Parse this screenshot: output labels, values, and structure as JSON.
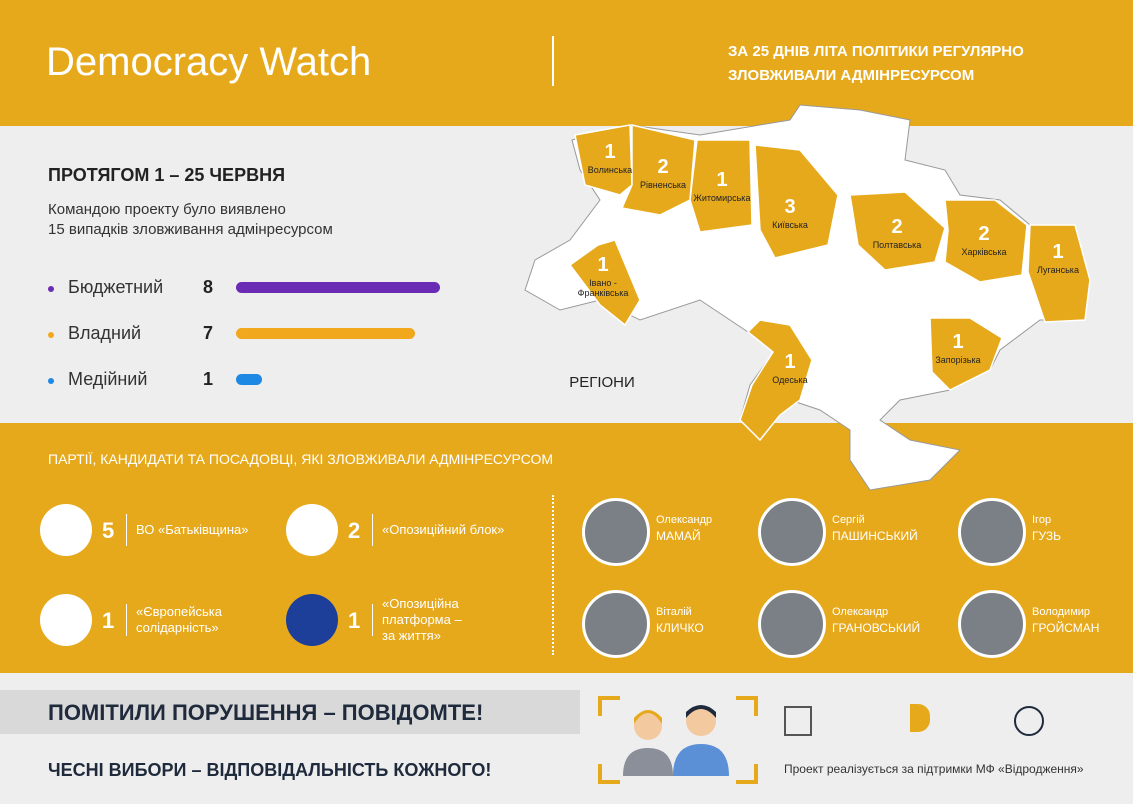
{
  "header": {
    "title": "Democracy Watch",
    "subtitle": [
      "ЗА 25 ДНІВ ЛІТА ПОЛІТИКИ РЕГУЛЯРНО",
      "ЗЛОВЖИВАЛИ АДМІНРЕСУРСОМ"
    ]
  },
  "summary": {
    "title": "ПРОТЯГОМ 1 – 25 ЧЕРВНЯ",
    "text": [
      "Командою проекту було виявлено",
      "15 випадків зловживання адмінресурсом"
    ],
    "types": [
      {
        "name": "Бюджетний",
        "value": 8,
        "color": "#6a2cb5"
      },
      {
        "name": "Владний",
        "value": 7,
        "color": "#f2a81d"
      },
      {
        "name": "Медійний",
        "value": 1,
        "color": "#1e88e5"
      }
    ]
  },
  "map": {
    "label": "РЕГІОНИ",
    "regions": [
      {
        "name": "Волинська",
        "count": 1
      },
      {
        "name": "Рівненська",
        "count": 2
      },
      {
        "name": "Житомирська",
        "count": 1
      },
      {
        "name": "Київська",
        "count": 3
      },
      {
        "name": "Полтавська",
        "count": 2
      },
      {
        "name": "Харківська",
        "count": 2
      },
      {
        "name": "Луганська",
        "count": 1
      },
      {
        "name": "Івано - Франківська",
        "count": 1
      },
      {
        "name": "Запорізька",
        "count": 1
      },
      {
        "name": "Одеська",
        "count": 1
      }
    ]
  },
  "offenders": {
    "title": "ПАРТІЇ, КАНДИДАТИ ТА ПОСАДОВЦІ, ЯКІ ЗЛОВЖИВАЛИ АДМІНРЕСУРСОМ",
    "parties": [
      {
        "count": 5,
        "name": [
          "ВО «Батьківщина»"
        ]
      },
      {
        "count": 2,
        "name": [
          "«Опозиційний блок»"
        ]
      },
      {
        "count": 1,
        "name": [
          "«Європейська",
          "солідарність»"
        ]
      },
      {
        "count": 1,
        "name": [
          "«Опозиційна",
          "платформа –",
          "за життя»"
        ]
      }
    ],
    "people": [
      {
        "first": "Олександр",
        "last": "МАМАЙ"
      },
      {
        "first": "Сергій",
        "last": "ПАШИНСЬКИЙ"
      },
      {
        "first": "Ігор",
        "last": "ГУЗЬ"
      },
      {
        "first": "Віталій",
        "last": "КЛИЧКО"
      },
      {
        "first": "Олександр",
        "last": "ГРАНОВСЬКИЙ"
      },
      {
        "first": "Володимир",
        "last": "ГРОЙСМАН"
      }
    ]
  },
  "footer": {
    "call": "ПОМІТИЛИ ПОРУШЕННЯ – ПОВІДОМТЕ!",
    "slogan": "ЧЕСНІ ВИБОРИ – ВІДПОВІДАЛЬНІСТЬ КОЖНОГО!",
    "support": "Проект реалізується за підтримки МФ «Відродження»"
  }
}
